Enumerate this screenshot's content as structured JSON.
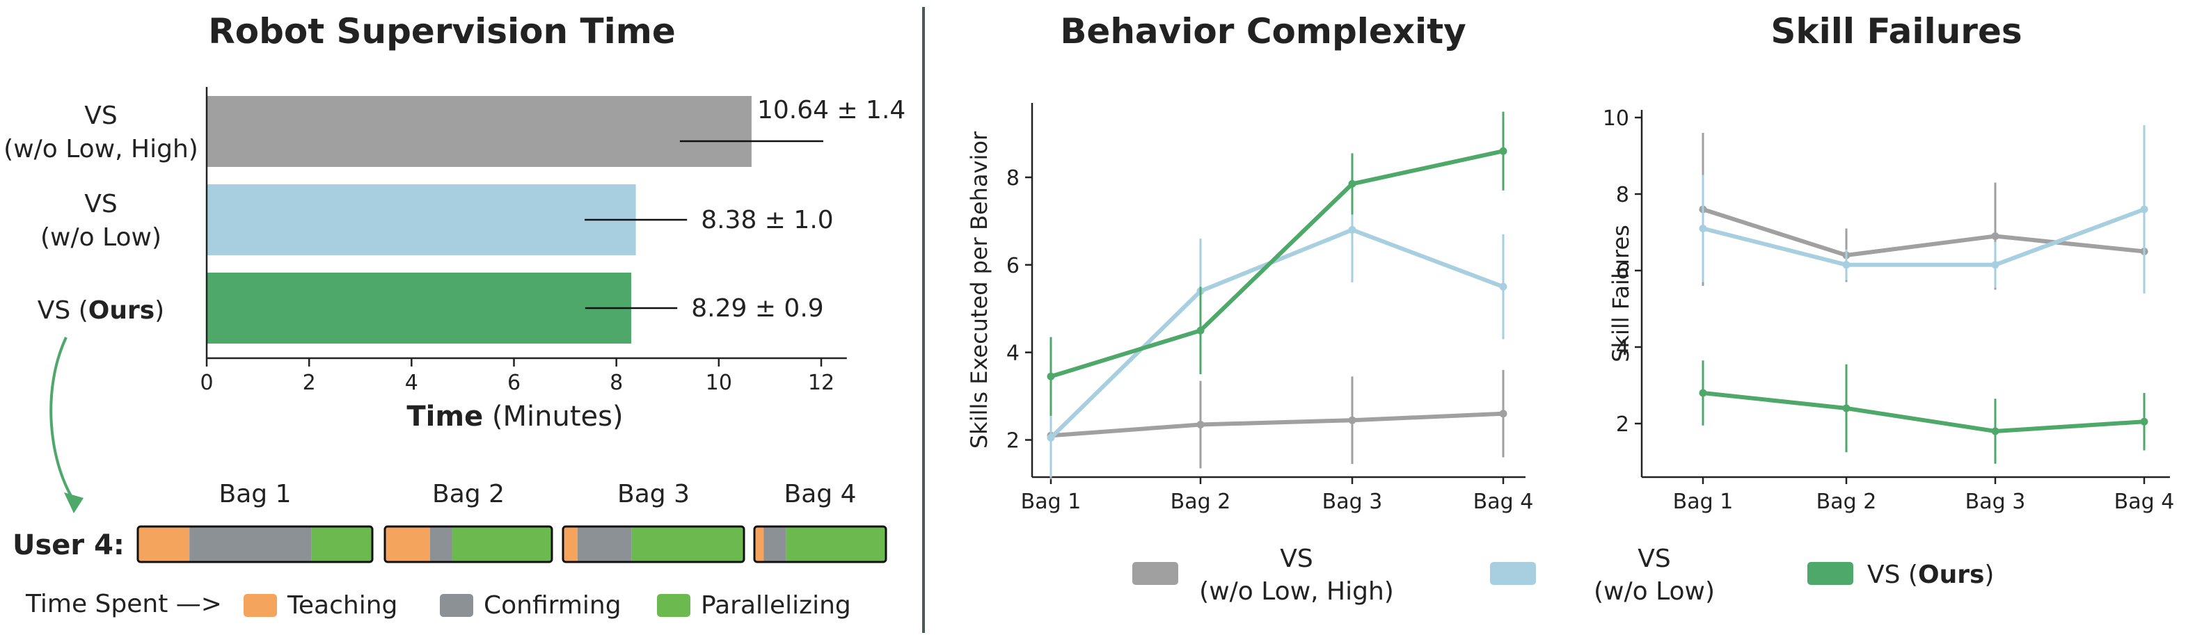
{
  "colors": {
    "gray": "#a0a0a0",
    "lightblue": "#a8cfe0",
    "green": "#4ea86a",
    "teaching": "#f5a45d",
    "confirming": "#8c9196",
    "parallelizing": "#6cba4f",
    "divider": "#4b5a58"
  },
  "series_legend": [
    {
      "key": "gray",
      "line1": "VS",
      "line2": "(w/o Low, High)"
    },
    {
      "key": "lightblue",
      "line1": "VS",
      "line2": "(w/o Low)"
    },
    {
      "key": "green",
      "line1": "VS (",
      "bold": "Ours",
      "tail": ")"
    }
  ],
  "chart_data": [
    {
      "type": "bar",
      "orientation": "horizontal",
      "title": "Robot Supervision Time",
      "xlabel_bold": "Time",
      "xlabel_rest": " (Minutes)",
      "xlim": [
        0,
        12.5
      ],
      "xticks": [
        0,
        2,
        4,
        6,
        8,
        10,
        12
      ],
      "categories": [
        {
          "line1": "VS",
          "line2": "(w/o Low, High)",
          "color": "gray"
        },
        {
          "line1": "VS",
          "line2": "(w/o Low)",
          "color": "lightblue"
        },
        {
          "line1": "VS (",
          "bold": "Ours",
          "tail": ")",
          "color": "green"
        }
      ],
      "values": [
        10.64,
        8.38,
        8.29
      ],
      "errors": [
        1.4,
        1.0,
        0.9
      ],
      "labels": [
        "10.64 ± 1.4",
        "8.38 ± 1.0",
        "8.29 ± 0.9"
      ]
    },
    {
      "type": "line",
      "title": "Behavior Complexity",
      "ylabel": "Skills Executed per Behavior",
      "categories": [
        "Bag 1",
        "Bag 2",
        "Bag 3",
        "Bag 4"
      ],
      "ylim": [
        1.15,
        9.7
      ],
      "yticks": [
        2,
        4,
        6,
        8
      ],
      "series": [
        {
          "color": "gray",
          "values": [
            2.1,
            2.35,
            2.45,
            2.6
          ],
          "errors": [
            1.0,
            1.0,
            1.0,
            1.0
          ]
        },
        {
          "color": "lightblue",
          "values": [
            2.05,
            5.4,
            6.8,
            5.5
          ],
          "errors": [
            0.9,
            1.2,
            1.2,
            1.2
          ]
        },
        {
          "color": "green",
          "values": [
            3.45,
            4.5,
            7.85,
            8.6
          ],
          "errors": [
            0.9,
            1.0,
            0.7,
            0.9
          ]
        }
      ]
    },
    {
      "type": "line",
      "title": "Skill Failures",
      "ylabel": "Skill Failures",
      "categories": [
        "Bag 1",
        "Bag 2",
        "Bag 3",
        "Bag 4"
      ],
      "ylim": [
        0.6,
        10.2
      ],
      "yticks": [
        2,
        4,
        6,
        8,
        10
      ],
      "series": [
        {
          "color": "gray",
          "values": [
            7.6,
            6.4,
            6.9,
            6.5
          ],
          "errors": [
            2.0,
            0.7,
            1.4,
            0.0
          ]
        },
        {
          "color": "lightblue",
          "values": [
            7.1,
            6.15,
            6.15,
            7.6
          ],
          "errors": [
            1.4,
            0.4,
            0.6,
            2.2
          ]
        },
        {
          "color": "green",
          "values": [
            2.8,
            2.4,
            1.8,
            2.05
          ],
          "errors": [
            0.85,
            1.15,
            0.85,
            0.75
          ]
        }
      ]
    }
  ],
  "user_timeline": {
    "user_label": "User 4:",
    "bags": [
      {
        "label": "Bag 1",
        "teaching": 0.22,
        "confirming": 0.52,
        "parallelizing": 0.26
      },
      {
        "label": "Bag 2",
        "teaching": 0.27,
        "confirming": 0.13,
        "parallelizing": 0.6
      },
      {
        "label": "Bag 3",
        "teaching": 0.08,
        "confirming": 0.3,
        "parallelizing": 0.62
      },
      {
        "label": "Bag 4",
        "teaching": 0.07,
        "confirming": 0.17,
        "parallelizing": 0.76
      }
    ],
    "legend_prefix": "Time Spent —>",
    "legend": [
      {
        "key": "teaching",
        "label": "Teaching"
      },
      {
        "key": "confirming",
        "label": "Confirming"
      },
      {
        "key": "parallelizing",
        "label": "Parallelizing"
      }
    ]
  }
}
